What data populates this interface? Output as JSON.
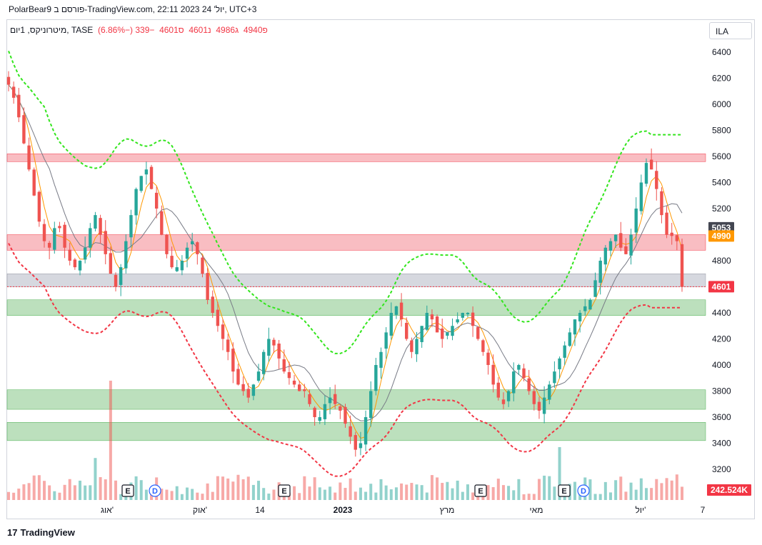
{
  "header": {
    "caption": "PolarBear9 פורסם ב-TradingView.com, 22:11 2023 יול' 24, UTC+3"
  },
  "legend": {
    "symbol": "מיטרוניקס, 1יום, TASE",
    "open_label": "פ",
    "open": "4940",
    "high_label": "ג",
    "high": "4986",
    "low_label": "נ",
    "low": "4601",
    "close_label": "ס",
    "close": "4601",
    "change": "−339 (−6.86%)"
  },
  "currency": "ILA",
  "branding": "TradingView",
  "colors": {
    "up": "#26a69a",
    "down": "#ef5350",
    "sma_fast": "#ff9800",
    "sma_slow": "#787b86",
    "envelope_upper": "#33e51d",
    "envelope_lower": "#f23645",
    "zone_red": "#f7a7ad",
    "zone_green": "#a5d6a7",
    "zone_gray": "#d1d4dc"
  },
  "chart_data": {
    "type": "candlestick",
    "ylim": [
      3000,
      6500
    ],
    "y_ticks": [
      3200,
      3400,
      3600,
      3800,
      4000,
      4200,
      4400,
      4600,
      4800,
      5000,
      5200,
      5400,
      5600,
      5800,
      6000,
      6200,
      6400
    ],
    "x_ticks": [
      "אוג'",
      "אוק'",
      "14",
      "2023",
      "מרץ",
      "מאי",
      "יול'",
      "7"
    ],
    "price_labels": [
      {
        "value": 5053,
        "text": "5053",
        "color": "#434651"
      },
      {
        "value": 4990,
        "text": "4990",
        "color": "#ff9800"
      },
      {
        "value": 4601,
        "text": "4601",
        "color": "#f23645"
      }
    ],
    "volume_label": "242.524K",
    "events": [
      "E",
      "D",
      "E",
      "E",
      "E",
      "D"
    ],
    "zones": [
      {
        "from": 5560,
        "to": 5620,
        "color": "red"
      },
      {
        "from": 4880,
        "to": 5000,
        "color": "red"
      },
      {
        "from": 4600,
        "to": 4700,
        "color": "gray"
      },
      {
        "from": 4380,
        "to": 4500,
        "color": "green"
      },
      {
        "from": 3660,
        "to": 3810,
        "color": "green"
      },
      {
        "from": 3420,
        "to": 3560,
        "color": "green"
      }
    ],
    "close_path": [
      6150,
      6050,
      5900,
      5700,
      5500,
      5300,
      5100,
      4950,
      4900,
      5050,
      5050,
      4900,
      4800,
      4750,
      4800,
      4900,
      5050,
      5150,
      5000,
      4850,
      4700,
      4600,
      4750,
      4950,
      5150,
      5350,
      5450,
      5500,
      5350,
      5200,
      5000,
      4850,
      4750,
      4750,
      4800,
      4900,
      4950,
      4850,
      4700,
      4500,
      4400,
      4300,
      4200,
      4100,
      3950,
      3850,
      3800,
      3750,
      3850,
      3950,
      4100,
      4200,
      4150,
      4050,
      3950,
      3900,
      3850,
      3800,
      3800,
      3700,
      3600,
      3600,
      3700,
      3750,
      3700,
      3650,
      3550,
      3450,
      3350,
      3400,
      3600,
      3800,
      4000,
      4100,
      4250,
      4400,
      4450,
      4350,
      4200,
      4100,
      4200,
      4300,
      4400,
      4350,
      4250,
      4200,
      4250,
      4300,
      4350,
      4400,
      4400,
      4300,
      4200,
      4100,
      4000,
      3850,
      3750,
      3700,
      3800,
      3950,
      4000,
      3900,
      3800,
      3700,
      3650,
      3750,
      3850,
      3950,
      4050,
      4150,
      4250,
      4350,
      4400,
      4450,
      4500,
      4650,
      4800,
      4900,
      4950,
      5000,
      4900,
      4850,
      5000,
      5200,
      5400,
      5550,
      5500,
      5350,
      5150,
      5000,
      4990,
      4950,
      4601
    ]
  }
}
